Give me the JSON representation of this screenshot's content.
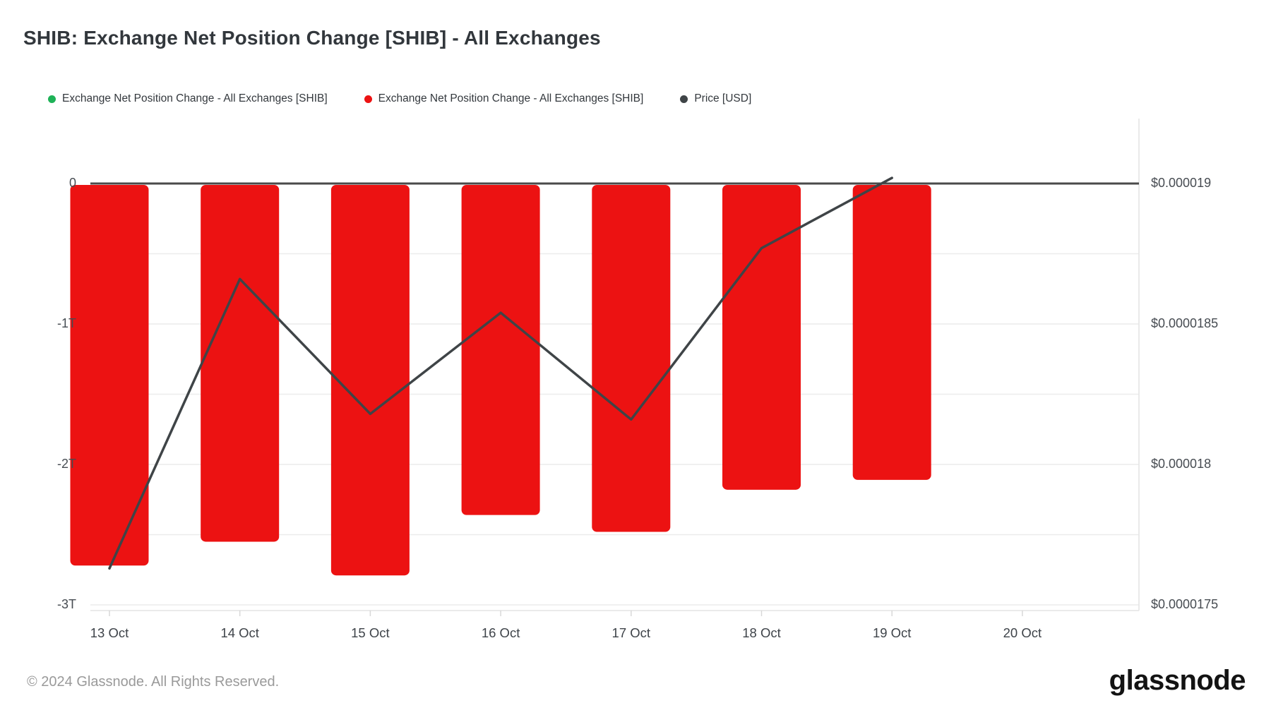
{
  "header": {
    "title": "SHIB: Exchange Net Position Change [SHIB] - All Exchanges"
  },
  "legend": [
    {
      "label": "Exchange Net Position Change - All Exchanges [SHIB]",
      "color": "#1eb257"
    },
    {
      "label": "Exchange Net Position Change - All Exchanges [SHIB]",
      "color": "#ec1212"
    },
    {
      "label": "Price [USD]",
      "color": "#3f4447"
    }
  ],
  "footer": {
    "copyright": "© 2024 Glassnode. All Rights Reserved.",
    "brand": "glassnode"
  },
  "chart_data": {
    "type": "bar+line",
    "title": "SHIB: Exchange Net Position Change [SHIB] - All Exchanges",
    "categories": [
      "13 Oct",
      "14 Oct",
      "15 Oct",
      "16 Oct",
      "17 Oct",
      "18 Oct",
      "19 Oct",
      "20 Oct"
    ],
    "series": [
      {
        "name": "Exchange Net Position Change - All Exchanges [SHIB]",
        "type": "bar",
        "color": "#ec1212",
        "unit": "trillion SHIB",
        "values": [
          -2.72,
          -2.55,
          -2.79,
          -2.36,
          -2.48,
          -2.18,
          -2.11,
          null
        ]
      },
      {
        "name": "Price [USD]",
        "type": "line",
        "color": "#3f4447",
        "unit": "USD",
        "values": [
          1.763e-05,
          1.866e-05,
          1.818e-05,
          1.854e-05,
          1.816e-05,
          1.877e-05,
          1.902e-05,
          null
        ]
      }
    ],
    "left_axis": {
      "ticks": [
        {
          "label": "0",
          "value": 0
        },
        {
          "label": "-1T",
          "value": -1
        },
        {
          "label": "-2T",
          "value": -2
        },
        {
          "label": "-3T",
          "value": -3
        }
      ],
      "range_trillions": [
        0.47,
        -3.05
      ],
      "grid_step_trillions": 0.5
    },
    "right_axis": {
      "ticks": [
        {
          "label": "$0.000019",
          "value": 1.9e-05
        },
        {
          "label": "$0.0000185",
          "value": 1.85e-05
        },
        {
          "label": "$0.000018",
          "value": 1.8e-05
        },
        {
          "label": "$0.0000175",
          "value": 1.75e-05
        }
      ]
    },
    "grid": "horizontal light gridlines every 0.5T; dark zero baseline",
    "legend_position": "top"
  }
}
